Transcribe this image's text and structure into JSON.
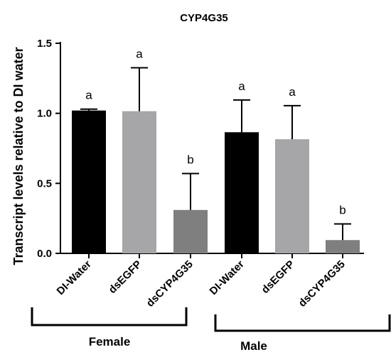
{
  "chart_data": {
    "type": "bar",
    "title": "CYP4G35",
    "ylabel": "Transcript levels relative to DI water",
    "xlabel": "",
    "ylim": [
      0,
      1.5
    ],
    "yticks": [
      "0.0",
      "0.5",
      "1.0",
      "1.5"
    ],
    "grid": false,
    "legend": "none",
    "categories": [
      "DI-Water",
      "dsEGFP",
      "dsCYP4G35",
      "DI-Water",
      "dsEGFP",
      "dsCYP4G35"
    ],
    "values": [
      1.02,
      1.015,
      0.31,
      0.865,
      0.815,
      0.095
    ],
    "errors": [
      0.01,
      0.31,
      0.26,
      0.23,
      0.24,
      0.115
    ],
    "significance": [
      "a",
      "a",
      "b",
      "a",
      "a",
      "b"
    ],
    "bar_colors": [
      "#000000",
      "#a6a6a8",
      "#7f7f7f",
      "#000000",
      "#a6a6a8",
      "#7f7f7f"
    ],
    "groups": [
      {
        "label": "Female",
        "from": 0,
        "to": 2
      },
      {
        "label": "Male",
        "from": 3,
        "to": 5
      }
    ]
  }
}
